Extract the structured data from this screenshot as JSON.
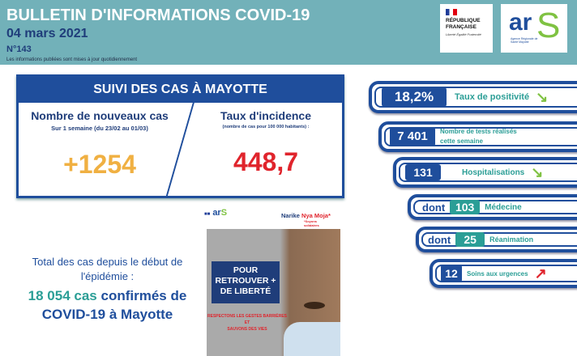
{
  "header": {
    "title": "BULLETIN D'INFORMATIONS COVID-19",
    "date": "04 mars 2021",
    "number": "N°143",
    "note": "Les informations publiées sont mises à jour quotidiennement"
  },
  "logos": {
    "rf_title": "RÉPUBLIQUE FRANÇAISE",
    "rf_motto": "Liberté Égalité Fraternité",
    "ars": "ars",
    "ars_sub": "Agence Régionale de Santé Mayotte"
  },
  "suivi": {
    "title": "SUIVI DES CAS À MAYOTTE",
    "new_cases": {
      "label": "Nombre de nouveaux cas",
      "sub": "Sur 1 semaine (du 23/02 au 01/03)",
      "value": "+1254"
    },
    "incidence": {
      "label": "Taux d'incidence",
      "sub": "(nombre de cas pour 100 000 habitants) :",
      "value": "448,7"
    }
  },
  "indicators": [
    {
      "value": "18,2%",
      "label": "Taux de positivité",
      "trend": "down"
    },
    {
      "value": "7 401",
      "label": "Nombre de tests réalisés cette semaine"
    },
    {
      "value": "131",
      "label": "Hospitalisations",
      "trend": "down"
    },
    {
      "prefix": "dont",
      "value": "103",
      "label": "Médecine"
    },
    {
      "prefix": "dont",
      "value": "25",
      "label": "Réanimation"
    },
    {
      "value": "12",
      "label": "Soins aux urgences",
      "trend": "up"
    }
  ],
  "total": {
    "line1": "Total des cas depuis le début de l'épidémie :",
    "count": "18 054 cas",
    "rest1": "confirmés de",
    "rest2": "COVID-19 à Mayotte"
  },
  "poster": {
    "brand": "Narike",
    "brand_red": "Nya Moja*",
    "brand_sub": "*Soyons solidaires",
    "headline": "POUR RETROUVER + DE LIBERTÉ",
    "line1": "RESPECTONS LES GESTES BARRIÈRES",
    "line2": "ET",
    "line3": "SAUVONS DES VIES"
  },
  "colors": {
    "teal": "#72b1b9",
    "blue": "#1f4e9c",
    "orange": "#f0b042",
    "red": "#e0242c",
    "green": "#2b9e96"
  }
}
